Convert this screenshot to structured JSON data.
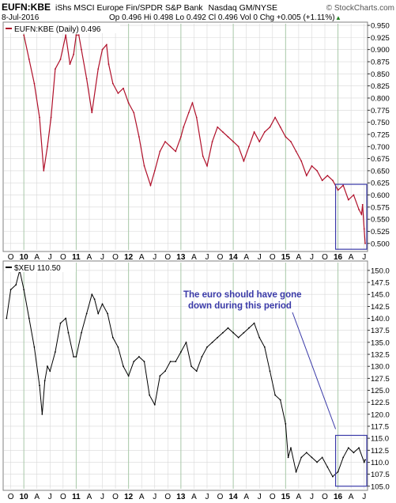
{
  "header": {
    "symbol": "EUFN:KBE",
    "description": "iShs MSCI Europe Fin/SPDR S&P Bank",
    "exchange": "Nasdaq GM/NYSE",
    "date": "8-Jul-2016",
    "quote": "Op 0.496  Hi 0.498  Lo 0.492  Cl 0.496  Vol 0  Chg +0.005 (+1.11%)",
    "quote_arrow": "▲",
    "branding": "© StockCharts.com"
  },
  "chart_data": [
    {
      "type": "line",
      "title": "EUFN:KBE (Daily) 0.496",
      "line_color": "#b0102a",
      "ylim": [
        0.485,
        0.955
      ],
      "yticks": [
        0.5,
        0.525,
        0.55,
        0.575,
        0.6,
        0.625,
        0.65,
        0.675,
        0.7,
        0.725,
        0.75,
        0.775,
        0.8,
        0.825,
        0.85,
        0.875,
        0.9,
        0.925,
        0.95
      ],
      "ytick_labels": [
        "0.500",
        "0.525",
        "0.550",
        "0.575",
        "0.600",
        "0.625",
        "0.650",
        "0.675",
        "0.700",
        "0.725",
        "0.750",
        "0.775",
        "0.800",
        "0.825",
        "0.850",
        "0.875",
        "0.900",
        "0.925",
        "0.950"
      ],
      "x": [
        2010.0,
        2010.1,
        2010.2,
        2010.3,
        2010.38,
        2010.45,
        2010.52,
        2010.6,
        2010.7,
        2010.8,
        2010.88,
        2010.95,
        2011.0,
        2011.05,
        2011.1,
        2011.2,
        2011.3,
        2011.42,
        2011.5,
        2011.58,
        2011.62,
        2011.7,
        2011.8,
        2011.9,
        2012.0,
        2012.1,
        2012.2,
        2012.3,
        2012.42,
        2012.5,
        2012.6,
        2012.7,
        2012.8,
        2012.9,
        2013.0,
        2013.05,
        2013.15,
        2013.22,
        2013.3,
        2013.42,
        2013.5,
        2013.6,
        2013.7,
        2013.8,
        2013.9,
        2014.0,
        2014.1,
        2014.2,
        2014.3,
        2014.4,
        2014.5,
        2014.6,
        2014.7,
        2014.8,
        2014.9,
        2015.0,
        2015.1,
        2015.2,
        2015.3,
        2015.4,
        2015.5,
        2015.6,
        2015.7,
        2015.8,
        2015.9,
        2016.0,
        2016.1,
        2016.2,
        2016.3,
        2016.4,
        2016.45,
        2016.47,
        2016.5,
        2016.52
      ],
      "values": [
        0.93,
        0.88,
        0.83,
        0.76,
        0.65,
        0.7,
        0.76,
        0.86,
        0.88,
        0.93,
        0.87,
        0.89,
        0.93,
        0.93,
        0.9,
        0.84,
        0.77,
        0.86,
        0.9,
        0.91,
        0.87,
        0.83,
        0.81,
        0.82,
        0.79,
        0.77,
        0.72,
        0.66,
        0.62,
        0.65,
        0.69,
        0.71,
        0.7,
        0.69,
        0.72,
        0.74,
        0.77,
        0.79,
        0.76,
        0.68,
        0.66,
        0.71,
        0.74,
        0.73,
        0.72,
        0.71,
        0.7,
        0.67,
        0.7,
        0.73,
        0.71,
        0.73,
        0.74,
        0.76,
        0.74,
        0.72,
        0.71,
        0.69,
        0.67,
        0.64,
        0.66,
        0.65,
        0.63,
        0.64,
        0.63,
        0.61,
        0.62,
        0.59,
        0.6,
        0.57,
        0.56,
        0.58,
        0.53,
        0.5
      ]
    },
    {
      "type": "line",
      "title": "$XEU 110.50",
      "line_color": "#000000",
      "ylim": [
        104.3,
        151.8
      ],
      "yticks": [
        105,
        107.5,
        110,
        112.5,
        115,
        117.5,
        120,
        122.5,
        125,
        127.5,
        130,
        132.5,
        135,
        137.5,
        140,
        142.5,
        145,
        147.5,
        150
      ],
      "ytick_labels": [
        "105.0",
        "107.5",
        "110.0",
        "112.5",
        "115.0",
        "117.5",
        "120.0",
        "122.5",
        "125.0",
        "127.5",
        "130.0",
        "132.5",
        "135.0",
        "137.5",
        "140.0",
        "142.5",
        "145.0",
        "147.5",
        "150.0"
      ],
      "x": [
        2009.67,
        2009.75,
        2009.85,
        2009.92,
        2010.0,
        2010.1,
        2010.2,
        2010.3,
        2010.35,
        2010.4,
        2010.45,
        2010.5,
        2010.6,
        2010.7,
        2010.8,
        2010.85,
        2010.95,
        2011.0,
        2011.1,
        2011.2,
        2011.3,
        2011.35,
        2011.42,
        2011.5,
        2011.6,
        2011.7,
        2011.8,
        2011.9,
        2012.0,
        2012.1,
        2012.2,
        2012.3,
        2012.4,
        2012.5,
        2012.6,
        2012.7,
        2012.8,
        2012.9,
        2013.0,
        2013.1,
        2013.2,
        2013.3,
        2013.4,
        2013.5,
        2013.6,
        2013.7,
        2013.8,
        2013.9,
        2014.0,
        2014.1,
        2014.2,
        2014.3,
        2014.4,
        2014.5,
        2014.6,
        2014.7,
        2014.8,
        2014.9,
        2015.0,
        2015.05,
        2015.1,
        2015.2,
        2015.3,
        2015.4,
        2015.5,
        2015.6,
        2015.7,
        2015.8,
        2015.9,
        2016.0,
        2016.1,
        2016.2,
        2016.3,
        2016.4,
        2016.5,
        2016.52
      ],
      "values": [
        140,
        146,
        147,
        150,
        146,
        140,
        134,
        126,
        120,
        127,
        130,
        129,
        133,
        139,
        140,
        137,
        132,
        132,
        137,
        141,
        145,
        144,
        141,
        143,
        141,
        136,
        134,
        130,
        128,
        131,
        132,
        131,
        124,
        122,
        128,
        129,
        131,
        131,
        133,
        135,
        130,
        129,
        132,
        134,
        135,
        136,
        137,
        138,
        137,
        136,
        137,
        138,
        139,
        136,
        134,
        129,
        124,
        123,
        118,
        111,
        113,
        108,
        111,
        112,
        111,
        110,
        111,
        109,
        107,
        108,
        111,
        113,
        112,
        113,
        110,
        110.5
      ]
    }
  ],
  "x_axis": {
    "tick_labels": [
      "O",
      "10",
      "A",
      "J",
      "O",
      "11",
      "A",
      "J",
      "O",
      "12",
      "A",
      "J",
      "O",
      "13",
      "A",
      "J",
      "O",
      "14",
      "A",
      "J",
      "O",
      "15",
      "A",
      "J",
      "O",
      "16",
      "A",
      "J"
    ],
    "tick_values": [
      2009.75,
      2010.0,
      2010.25,
      2010.5,
      2010.75,
      2011.0,
      2011.25,
      2011.5,
      2011.75,
      2012.0,
      2012.25,
      2012.5,
      2012.75,
      2013.0,
      2013.25,
      2013.5,
      2013.75,
      2014.0,
      2014.25,
      2014.5,
      2014.75,
      2015.0,
      2015.25,
      2015.5,
      2015.75,
      2016.0,
      2016.25,
      2016.5
    ],
    "year_labels": [
      "10",
      "11",
      "12",
      "13",
      "14",
      "15",
      "16"
    ],
    "xlim": [
      2009.62,
      2016.55
    ]
  },
  "annotation": {
    "text_line1": "The euro should have gone",
    "text_line2": "down during this period",
    "color": "#3a3aa8",
    "box_x": [
      2016.0,
      2016.52
    ]
  },
  "colors": {
    "grid": "#d8d8d8",
    "year_grid": "#a8c8a8",
    "panel_border": "#808080"
  }
}
